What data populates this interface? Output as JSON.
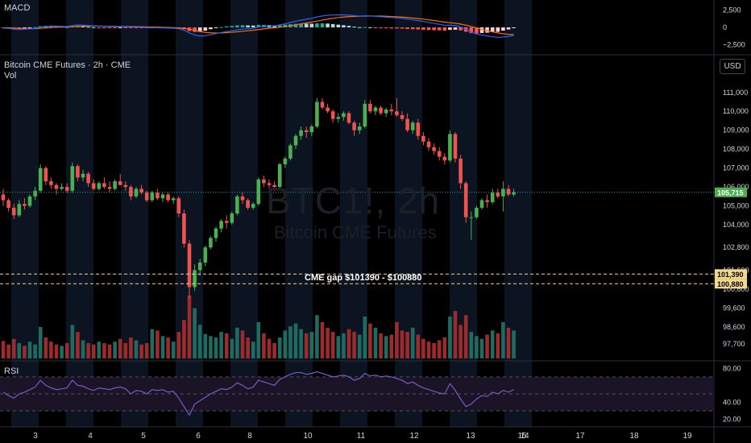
{
  "header": {
    "symbol_title": "Bitcoin CME Futures · 2h · CME",
    "vol_label": "Vol",
    "macd_label": "MACD",
    "rsi_label": "RSI",
    "currency_button": "USD"
  },
  "watermark": {
    "symbol": "BTC1!, 2h",
    "name": "Bitcoin CME Futures"
  },
  "annotation": {
    "gap_text": "CME gap $101390 - $100880"
  },
  "colors": {
    "up": "#26a69a",
    "up_bright": "#4caf50",
    "down": "#ef5350",
    "volume_up": "#1e6b62",
    "volume_down": "#9c2b2b",
    "macd_line": "#2962ff",
    "signal_line": "#ff6d00",
    "rsi_line": "#7e57c2",
    "session_band": "#0b1420",
    "gap_tag": "#f5d98b"
  },
  "chart_data": [
    {
      "type": "candlestick",
      "title": "Bitcoin CME Futures · 2h · CME",
      "x_ticks": [
        "3",
        "4",
        "5",
        "6",
        "8",
        "10",
        "11",
        "12",
        "13",
        "14",
        "15",
        "17",
        "18",
        "19"
      ],
      "y_ticks": [
        97700,
        98600,
        99600,
        100600,
        101600,
        102800,
        104000,
        105000,
        106000,
        107000,
        108000,
        109000,
        110000,
        111000
      ],
      "ylim": [
        96800,
        111800
      ],
      "last_price": 105715,
      "last_price_label": "105,715",
      "gap_levels": [
        101390,
        100880
      ],
      "gap_level_labels": [
        "101,390",
        "100,880"
      ],
      "candles": [
        [
          105600,
          105900,
          105000,
          105300
        ],
        [
          105300,
          105400,
          104700,
          104900
        ],
        [
          104900,
          105100,
          104300,
          104500
        ],
        [
          104500,
          105300,
          104400,
          105100
        ],
        [
          105100,
          105400,
          104800,
          105000
        ],
        [
          105000,
          105600,
          104900,
          105500
        ],
        [
          105500,
          106000,
          105300,
          105800
        ],
        [
          105800,
          107200,
          105700,
          107000
        ],
        [
          107000,
          107100,
          106100,
          106300
        ],
        [
          106300,
          106500,
          105900,
          106100
        ],
        [
          106100,
          106200,
          105600,
          105900
        ],
        [
          105900,
          106200,
          105800,
          106000
        ],
        [
          106000,
          106200,
          105700,
          105800
        ],
        [
          105800,
          107300,
          105700,
          107100
        ],
        [
          107100,
          107200,
          106300,
          106500
        ],
        [
          106500,
          106900,
          106300,
          106700
        ],
        [
          106700,
          106800,
          106000,
          106200
        ],
        [
          106200,
          106400,
          105800,
          105900
        ],
        [
          105900,
          106300,
          105800,
          106200
        ],
        [
          106200,
          106500,
          105900,
          106000
        ],
        [
          106000,
          106300,
          105700,
          105900
        ],
        [
          105900,
          106400,
          105800,
          106300
        ],
        [
          106300,
          106700,
          106100,
          106100
        ],
        [
          106100,
          106300,
          105800,
          106000
        ],
        [
          106000,
          106100,
          105300,
          105500
        ],
        [
          105500,
          106000,
          105400,
          105900
        ],
        [
          105900,
          106100,
          105600,
          105700
        ],
        [
          105700,
          105800,
          105200,
          105300
        ],
        [
          105300,
          105800,
          105200,
          105700
        ],
        [
          105700,
          105900,
          105300,
          105400
        ],
        [
          105400,
          105700,
          105200,
          105600
        ],
        [
          105600,
          105700,
          105200,
          105300
        ],
        [
          105300,
          105500,
          105100,
          105400
        ],
        [
          105400,
          105500,
          104400,
          104600
        ],
        [
          104600,
          104800,
          102800,
          103000
        ],
        [
          103000,
          103200,
          100100,
          100700
        ],
        [
          100700,
          101900,
          100500,
          101600
        ],
        [
          101600,
          102200,
          101300,
          102000
        ],
        [
          102000,
          102900,
          101800,
          102800
        ],
        [
          102800,
          103400,
          102700,
          103300
        ],
        [
          103300,
          103900,
          103100,
          103800
        ],
        [
          103800,
          104300,
          103600,
          104200
        ],
        [
          104200,
          104500,
          103800,
          104100
        ],
        [
          104100,
          104700,
          104000,
          104600
        ],
        [
          104600,
          105600,
          104500,
          105500
        ],
        [
          105500,
          105700,
          105100,
          105300
        ],
        [
          105300,
          105400,
          104800,
          104900
        ],
        [
          104900,
          105200,
          104800,
          105100
        ],
        [
          105100,
          106500,
          105000,
          106400
        ],
        [
          106400,
          106600,
          106000,
          106200
        ],
        [
          106200,
          106400,
          105900,
          106100
        ],
        [
          106100,
          106300,
          105800,
          106000
        ],
        [
          106000,
          107300,
          105900,
          107200
        ],
        [
          107200,
          107600,
          107000,
          107500
        ],
        [
          107500,
          108300,
          107400,
          108200
        ],
        [
          108200,
          108800,
          108000,
          108700
        ],
        [
          108700,
          109200,
          108500,
          109000
        ],
        [
          109000,
          109200,
          108600,
          108900
        ],
        [
          108900,
          109300,
          108700,
          109200
        ],
        [
          109200,
          110700,
          109100,
          110500
        ],
        [
          110500,
          110700,
          110100,
          110200
        ],
        [
          110200,
          110400,
          109900,
          110000
        ],
        [
          110000,
          110100,
          109400,
          109600
        ],
        [
          109600,
          109900,
          109400,
          109700
        ],
        [
          109700,
          110000,
          109500,
          109900
        ],
        [
          109900,
          110000,
          109300,
          109400
        ],
        [
          109400,
          109500,
          108700,
          109000
        ],
        [
          109000,
          109400,
          108800,
          109200
        ],
        [
          109200,
          110600,
          109100,
          110400
        ],
        [
          110400,
          110600,
          109900,
          110000
        ],
        [
          110000,
          110300,
          109800,
          110200
        ],
        [
          110200,
          110300,
          109800,
          109900
        ],
        [
          109900,
          110200,
          109700,
          110100
        ],
        [
          110100,
          110400,
          109800,
          110000
        ],
        [
          110000,
          110700,
          109700,
          109800
        ],
        [
          109800,
          110000,
          109500,
          109600
        ],
        [
          109600,
          109900,
          108900,
          109000
        ],
        [
          109000,
          109500,
          108800,
          109400
        ],
        [
          109400,
          109600,
          108500,
          108700
        ],
        [
          108700,
          108900,
          108200,
          108400
        ],
        [
          108400,
          108600,
          107900,
          108100
        ],
        [
          108100,
          108300,
          107700,
          107900
        ],
        [
          107900,
          108100,
          107400,
          107600
        ],
        [
          107600,
          107800,
          107200,
          107400
        ],
        [
          107400,
          109000,
          107300,
          108800
        ],
        [
          108800,
          108900,
          107300,
          107500
        ],
        [
          107500,
          107700,
          105900,
          106200
        ],
        [
          106200,
          106300,
          104100,
          104400
        ],
        [
          104400,
          104700,
          103200,
          104400
        ],
        [
          104400,
          105000,
          104300,
          104900
        ],
        [
          104900,
          105400,
          104800,
          105300
        ],
        [
          105300,
          105600,
          104900,
          105200
        ],
        [
          105200,
          105900,
          105100,
          105700
        ],
        [
          105700,
          105900,
          105400,
          105500
        ],
        [
          105500,
          106300,
          104700,
          105900
        ],
        [
          105900,
          106100,
          105500,
          105600
        ],
        [
          105600,
          105900,
          105500,
          105715
        ]
      ],
      "volume": [
        25,
        20,
        28,
        22,
        18,
        24,
        20,
        45,
        30,
        24,
        20,
        18,
        22,
        48,
        38,
        26,
        22,
        20,
        24,
        22,
        20,
        24,
        28,
        22,
        30,
        26,
        20,
        22,
        42,
        40,
        32,
        30,
        24,
        38,
        55,
        90,
        72,
        48,
        35,
        32,
        30,
        38,
        36,
        28,
        44,
        40,
        30,
        24,
        52,
        36,
        28,
        22,
        30,
        40,
        46,
        50,
        42,
        36,
        38,
        62,
        52,
        44,
        38,
        32,
        36,
        42,
        38,
        34,
        60,
        50,
        44,
        36,
        32,
        34,
        52,
        40,
        38,
        44,
        34,
        28,
        24,
        22,
        26,
        30,
        60,
        68,
        48,
        62,
        38,
        32,
        28,
        34,
        40,
        36,
        52,
        44,
        40
      ],
      "x_tick_positions_day": [
        3,
        4,
        5,
        6,
        8,
        10,
        11,
        12,
        13,
        14,
        15,
        17,
        18,
        19
      ]
    },
    {
      "type": "line",
      "title": "MACD",
      "y_ticks_labels": [
        "2,500",
        "0",
        "−2,500"
      ],
      "ylim": [
        -3500,
        3500
      ]
    },
    {
      "type": "line",
      "title": "RSI",
      "y_ticks_labels": [
        "80.00",
        "40.00",
        "20.00"
      ],
      "ylim": [
        15,
        85
      ]
    }
  ],
  "macd_series": {
    "macd": [
      -100,
      -150,
      -250,
      -300,
      -250,
      -200,
      -150,
      50,
      150,
      200,
      180,
      150,
      120,
      250,
      350,
      320,
      280,
      220,
      180,
      150,
      120,
      100,
      120,
      90,
      60,
      40,
      20,
      -30,
      -20,
      -60,
      -80,
      -100,
      -120,
      -200,
      -400,
      -800,
      -1100,
      -1250,
      -1200,
      -1050,
      -900,
      -750,
      -600,
      -500,
      -350,
      -250,
      -200,
      -150,
      50,
      150,
      200,
      220,
      350,
      520,
      700,
      880,
      1050,
      1180,
      1300,
      1500,
      1650,
      1750,
      1800,
      1820,
      1810,
      1780,
      1700,
      1640,
      1680,
      1650,
      1600,
      1540,
      1480,
      1420,
      1380,
      1320,
      1200,
      1100,
      980,
      850,
      720,
      580,
      450,
      300,
      320,
      250,
      50,
      -300,
      -700,
      -950,
      -1100,
      -1250,
      -1350,
      -1450,
      -1400,
      -1300,
      -1150
    ],
    "signal": [
      -50,
      -70,
      -110,
      -150,
      -180,
      -190,
      -180,
      -130,
      -70,
      -20,
      20,
      45,
      60,
      95,
      140,
      175,
      195,
      200,
      195,
      185,
      170,
      155,
      145,
      135,
      120,
      100,
      85,
      60,
      45,
      25,
      5,
      -15,
      -35,
      -70,
      -140,
      -270,
      -440,
      -600,
      -720,
      -790,
      -810,
      -800,
      -760,
      -710,
      -640,
      -560,
      -490,
      -420,
      -320,
      -220,
      -130,
      -60,
      25,
      125,
      240,
      370,
      505,
      640,
      770,
      915,
      1060,
      1195,
      1320,
      1420,
      1500,
      1560,
      1590,
      1610,
      1630,
      1640,
      1640,
      1630,
      1600,
      1570,
      1530,
      1490,
      1430,
      1360,
      1280,
      1190,
      1100,
      990,
      880,
      760,
      680,
      590,
      480,
      330,
      130,
      -80,
      -290,
      -480,
      -650,
      -800,
      -920,
      -1000,
      -1050
    ]
  },
  "rsi_series": [
    52,
    48,
    45,
    50,
    52,
    55,
    58,
    66,
    60,
    57,
    55,
    56,
    57,
    66,
    60,
    59,
    56,
    54,
    57,
    56,
    55,
    57,
    58,
    56,
    50,
    54,
    53,
    50,
    55,
    54,
    55,
    52,
    53,
    45,
    35,
    25,
    38,
    42,
    46,
    50,
    53,
    56,
    55,
    58,
    63,
    60,
    56,
    58,
    66,
    64,
    62,
    60,
    67,
    70,
    73,
    75,
    75,
    73,
    74,
    76,
    74,
    72,
    70,
    71,
    72,
    70,
    66,
    68,
    74,
    71,
    72,
    70,
    71,
    70,
    68,
    66,
    62,
    64,
    60,
    57,
    55,
    53,
    51,
    50,
    62,
    54,
    44,
    35,
    38,
    44,
    48,
    47,
    52,
    50,
    54,
    52,
    55
  ]
}
